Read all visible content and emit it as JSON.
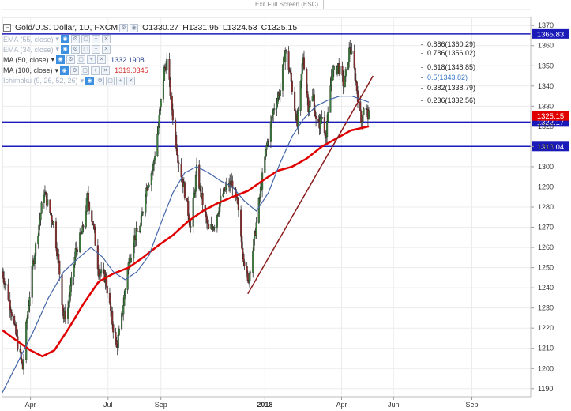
{
  "window": {
    "exit_fullscreen": "Exit Full Screen (ESC)"
  },
  "header": {
    "symbol": "Gold/U.S. Dollar, 1D, FXCM",
    "o_label": "O",
    "o_value": "1330.27",
    "h_label": "H",
    "h_value": "1331.95",
    "l_label": "L",
    "l_value": "1324.53",
    "c_label": "C",
    "c_value": "1325.15"
  },
  "indicators": [
    {
      "name": "EMA (55, close)",
      "value": "",
      "faded": true
    },
    {
      "name": "EMA (34, close)",
      "value": "",
      "faded": true
    },
    {
      "name": "MA (50, close)",
      "value": "1332.1908",
      "value_color": "#1e3a8a"
    },
    {
      "name": "MA (100, close)",
      "value": "1319.0345",
      "value_color": "#d32f2f"
    },
    {
      "name": "Ichimoku (9, 26, 52, 26)",
      "value": "",
      "faded": true
    }
  ],
  "fib_levels": [
    {
      "text": "0.886(1360.29)",
      "price": 1360.29,
      "color": "#222222"
    },
    {
      "text": "0.786(1356.02)",
      "price": 1356.02,
      "color": "#222222"
    },
    {
      "text": "0.618(1348.85)",
      "price": 1348.85,
      "color": "#222222"
    },
    {
      "text": "0.5(1343.82)",
      "price": 1343.82,
      "color": "#3a78c9"
    },
    {
      "text": "0.382(1338.79)",
      "price": 1338.79,
      "color": "#222222"
    },
    {
      "text": "0.236(1332.56)",
      "price": 1332.56,
      "color": "#222222"
    }
  ],
  "colors": {
    "bull": "#3b7d3b",
    "bear": "#8b2c2c",
    "ma50": "#4466aa",
    "ma100": "#e00000",
    "hline": "#1a1ab8",
    "trend": "#8b1a1a",
    "current": "#e00000"
  },
  "chart_data": {
    "type": "candlestick",
    "x_labels": [
      "Apr",
      "Jul",
      "Sep",
      "2018",
      "Apr",
      "Jun",
      "Sep"
    ],
    "y_ticks": [
      1190,
      1200,
      1210,
      1220,
      1230,
      1240,
      1250,
      1260,
      1270,
      1280,
      1290,
      1300,
      1310,
      1320,
      1330,
      1340,
      1350,
      1360,
      1370
    ],
    "y_range": [
      1186,
      1374
    ],
    "horizontal_lines": [
      {
        "label": "1365.83",
        "price": 1365.83
      },
      {
        "label": "1322.17",
        "price": 1322.17
      },
      {
        "label": "1310.04",
        "price": 1310.04
      }
    ],
    "current_price": {
      "label": "1325.15",
      "price": 1325.15
    },
    "trendline": {
      "from": {
        "date": "2017-12-12",
        "price": 1237
      },
      "to": {
        "date": "2018-05-08",
        "price": 1345
      }
    },
    "price_path": [
      {
        "date": "2017-02-27",
        "price": 1248
      },
      {
        "date": "2017-03-09",
        "price": 1230
      },
      {
        "date": "2017-03-17",
        "price": 1212
      },
      {
        "date": "2017-03-23",
        "price": 1200
      },
      {
        "date": "2017-03-28",
        "price": 1225
      },
      {
        "date": "2017-04-04",
        "price": 1252
      },
      {
        "date": "2017-04-17",
        "price": 1288
      },
      {
        "date": "2017-04-22",
        "price": 1280
      },
      {
        "date": "2017-04-28",
        "price": 1272
      },
      {
        "date": "2017-05-04",
        "price": 1252
      },
      {
        "date": "2017-05-10",
        "price": 1225
      },
      {
        "date": "2017-05-15",
        "price": 1230
      },
      {
        "date": "2017-05-24",
        "price": 1258
      },
      {
        "date": "2017-06-01",
        "price": 1268
      },
      {
        "date": "2017-06-07",
        "price": 1285
      },
      {
        "date": "2017-06-14",
        "price": 1270
      },
      {
        "date": "2017-06-20",
        "price": 1248
      },
      {
        "date": "2017-06-28",
        "price": 1245
      },
      {
        "date": "2017-07-04",
        "price": 1228
      },
      {
        "date": "2017-07-11",
        "price": 1210
      },
      {
        "date": "2017-07-17",
        "price": 1225
      },
      {
        "date": "2017-07-24",
        "price": 1250
      },
      {
        "date": "2017-08-01",
        "price": 1265
      },
      {
        "date": "2017-08-08",
        "price": 1270
      },
      {
        "date": "2017-08-14",
        "price": 1288
      },
      {
        "date": "2017-08-23",
        "price": 1300
      },
      {
        "date": "2017-08-29",
        "price": 1320
      },
      {
        "date": "2017-09-05",
        "price": 1348
      },
      {
        "date": "2017-09-08",
        "price": 1352
      },
      {
        "date": "2017-09-15",
        "price": 1325
      },
      {
        "date": "2017-09-21",
        "price": 1305
      },
      {
        "date": "2017-09-28",
        "price": 1290
      },
      {
        "date": "2017-10-06",
        "price": 1270
      },
      {
        "date": "2017-10-13",
        "price": 1298
      },
      {
        "date": "2017-10-20",
        "price": 1282
      },
      {
        "date": "2017-10-27",
        "price": 1268
      },
      {
        "date": "2017-11-03",
        "price": 1272
      },
      {
        "date": "2017-11-11",
        "price": 1285
      },
      {
        "date": "2017-11-17",
        "price": 1290
      },
      {
        "date": "2017-11-24",
        "price": 1292
      },
      {
        "date": "2017-11-30",
        "price": 1280
      },
      {
        "date": "2017-12-05",
        "price": 1262
      },
      {
        "date": "2017-12-09",
        "price": 1250
      },
      {
        "date": "2017-12-12",
        "price": 1242
      },
      {
        "date": "2017-12-19",
        "price": 1262
      },
      {
        "date": "2017-12-26",
        "price": 1285
      },
      {
        "date": "2018-01-03",
        "price": 1310
      },
      {
        "date": "2018-01-12",
        "price": 1330
      },
      {
        "date": "2018-01-19",
        "price": 1338
      },
      {
        "date": "2018-01-25",
        "price": 1358
      },
      {
        "date": "2018-01-31",
        "price": 1345
      },
      {
        "date": "2018-02-08",
        "price": 1320
      },
      {
        "date": "2018-02-15",
        "price": 1355
      },
      {
        "date": "2018-02-21",
        "price": 1330
      },
      {
        "date": "2018-02-27",
        "price": 1335
      },
      {
        "date": "2018-03-03",
        "price": 1318
      },
      {
        "date": "2018-03-09",
        "price": 1325
      },
      {
        "date": "2018-03-14",
        "price": 1315
      },
      {
        "date": "2018-03-20",
        "price": 1345
      },
      {
        "date": "2018-03-28",
        "price": 1350
      },
      {
        "date": "2018-04-04",
        "price": 1340
      },
      {
        "date": "2018-04-11",
        "price": 1360
      },
      {
        "date": "2018-04-17",
        "price": 1345
      },
      {
        "date": "2018-04-24",
        "price": 1322
      },
      {
        "date": "2018-04-27",
        "price": 1330
      },
      {
        "date": "2018-05-03",
        "price": 1325
      }
    ],
    "ma50": [
      {
        "date": "2017-02-27",
        "price": 1188
      },
      {
        "date": "2017-03-17",
        "price": 1203
      },
      {
        "date": "2017-04-04",
        "price": 1218
      },
      {
        "date": "2017-04-22",
        "price": 1235
      },
      {
        "date": "2017-05-10",
        "price": 1248
      },
      {
        "date": "2017-05-28",
        "price": 1255
      },
      {
        "date": "2017-06-11",
        "price": 1260
      },
      {
        "date": "2017-06-25",
        "price": 1255
      },
      {
        "date": "2017-07-07",
        "price": 1248
      },
      {
        "date": "2017-07-21",
        "price": 1244
      },
      {
        "date": "2017-08-04",
        "price": 1248
      },
      {
        "date": "2017-08-18",
        "price": 1256
      },
      {
        "date": "2017-09-01",
        "price": 1272
      },
      {
        "date": "2017-09-15",
        "price": 1287
      },
      {
        "date": "2017-09-29",
        "price": 1297
      },
      {
        "date": "2017-10-13",
        "price": 1300
      },
      {
        "date": "2017-10-27",
        "price": 1297
      },
      {
        "date": "2017-11-10",
        "price": 1293
      },
      {
        "date": "2017-11-24",
        "price": 1290
      },
      {
        "date": "2017-12-08",
        "price": 1283
      },
      {
        "date": "2017-12-22",
        "price": 1278
      },
      {
        "date": "2018-01-05",
        "price": 1287
      },
      {
        "date": "2018-01-19",
        "price": 1302
      },
      {
        "date": "2018-02-02",
        "price": 1315
      },
      {
        "date": "2018-02-16",
        "price": 1324
      },
      {
        "date": "2018-03-02",
        "price": 1330
      },
      {
        "date": "2018-03-16",
        "price": 1333
      },
      {
        "date": "2018-03-30",
        "price": 1335
      },
      {
        "date": "2018-04-13",
        "price": 1335
      },
      {
        "date": "2018-05-03",
        "price": 1332
      }
    ],
    "ma100": [
      {
        "date": "2017-02-27",
        "price": 1219
      },
      {
        "date": "2017-03-15",
        "price": 1214
      },
      {
        "date": "2017-04-01",
        "price": 1209
      },
      {
        "date": "2017-04-15",
        "price": 1206
      },
      {
        "date": "2017-04-29",
        "price": 1209
      },
      {
        "date": "2017-05-16",
        "price": 1220
      },
      {
        "date": "2017-06-02",
        "price": 1232
      },
      {
        "date": "2017-06-20",
        "price": 1243
      },
      {
        "date": "2017-07-07",
        "price": 1247
      },
      {
        "date": "2017-07-25",
        "price": 1250
      },
      {
        "date": "2017-08-11",
        "price": 1255
      },
      {
        "date": "2017-08-29",
        "price": 1261
      },
      {
        "date": "2017-09-15",
        "price": 1266
      },
      {
        "date": "2017-10-03",
        "price": 1273
      },
      {
        "date": "2017-10-20",
        "price": 1278
      },
      {
        "date": "2017-11-07",
        "price": 1282
      },
      {
        "date": "2017-11-24",
        "price": 1285
      },
      {
        "date": "2017-12-12",
        "price": 1288
      },
      {
        "date": "2017-12-29",
        "price": 1293
      },
      {
        "date": "2018-01-16",
        "price": 1298
      },
      {
        "date": "2018-02-02",
        "price": 1300
      },
      {
        "date": "2018-02-19",
        "price": 1304
      },
      {
        "date": "2018-03-09",
        "price": 1310
      },
      {
        "date": "2018-03-26",
        "price": 1314
      },
      {
        "date": "2018-04-12",
        "price": 1318
      },
      {
        "date": "2018-05-03",
        "price": 1320
      }
    ]
  }
}
